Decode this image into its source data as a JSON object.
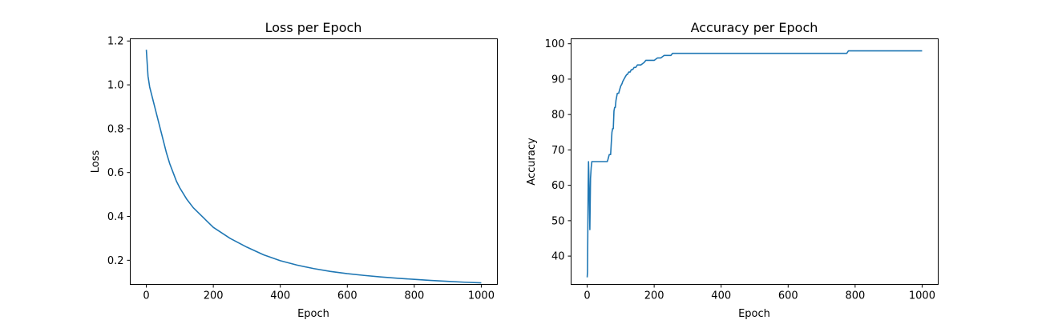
{
  "chart_data": [
    {
      "type": "line",
      "title": "Loss per Epoch",
      "xlabel": "Epoch",
      "ylabel": "Loss",
      "xlim": [
        -48,
        1048
      ],
      "ylim": [
        0.09,
        1.21
      ],
      "xticks": [
        0,
        200,
        400,
        600,
        800,
        1000
      ],
      "yticks": [
        0.2,
        0.4,
        0.6,
        0.8,
        1.0,
        1.2
      ],
      "ytick_labels": [
        "0.2",
        "0.4",
        "0.6",
        "0.8",
        "1.0",
        "1.2"
      ],
      "grid": false,
      "color": "#1f77b4",
      "series": [
        {
          "x": [
            0,
            5,
            10,
            20,
            30,
            40,
            50,
            60,
            70,
            80,
            90,
            100,
            120,
            140,
            160,
            180,
            200,
            250,
            300,
            350,
            400,
            450,
            500,
            550,
            600,
            650,
            700,
            750,
            800,
            850,
            900,
            950,
            1000
          ],
          "values": [
            1.16,
            1.04,
            0.99,
            0.93,
            0.87,
            0.81,
            0.75,
            0.69,
            0.64,
            0.6,
            0.56,
            0.53,
            0.48,
            0.44,
            0.41,
            0.38,
            0.35,
            0.3,
            0.26,
            0.225,
            0.198,
            0.178,
            0.162,
            0.149,
            0.139,
            0.131,
            0.124,
            0.118,
            0.113,
            0.108,
            0.104,
            0.1,
            0.097
          ]
        }
      ]
    },
    {
      "type": "line",
      "title": "Accuracy per Epoch",
      "xlabel": "Epoch",
      "ylabel": "Accuracy",
      "xlim": [
        -48,
        1048
      ],
      "ylim": [
        32,
        101.4
      ],
      "xticks": [
        0,
        200,
        400,
        600,
        800,
        1000
      ],
      "yticks": [
        40,
        50,
        60,
        70,
        80,
        90,
        100
      ],
      "ytick_labels": [
        "40",
        "50",
        "60",
        "70",
        "80",
        "90",
        "100"
      ],
      "grid": false,
      "color": "#1f77b4",
      "series": [
        {
          "x": [
            0,
            1,
            2,
            3,
            4,
            5,
            6,
            8,
            10,
            12,
            14,
            60,
            62,
            66,
            70,
            72,
            74,
            76,
            78,
            80,
            82,
            84,
            86,
            90,
            94,
            96,
            100,
            104,
            106,
            110,
            114,
            118,
            120,
            124,
            128,
            132,
            136,
            140,
            145,
            150,
            160,
            170,
            175,
            200,
            210,
            220,
            230,
            250,
            255,
            270,
            775,
            780,
            1000
          ],
          "values": [
            34,
            35.5,
            48,
            60,
            66.7,
            63,
            58,
            47.5,
            62,
            65,
            66.7,
            66.7,
            67.3,
            68.7,
            68.7,
            72,
            75,
            76,
            76,
            81,
            82,
            82,
            84,
            86,
            86,
            86.7,
            88,
            88.7,
            89.3,
            90,
            90.7,
            91.3,
            91.3,
            92,
            92,
            92.7,
            92.7,
            93.3,
            93.3,
            94,
            94,
            94.7,
            95.3,
            95.3,
            96,
            96,
            96.7,
            96.7,
            97.3,
            97.3,
            97.3,
            98,
            98
          ]
        }
      ]
    }
  ]
}
